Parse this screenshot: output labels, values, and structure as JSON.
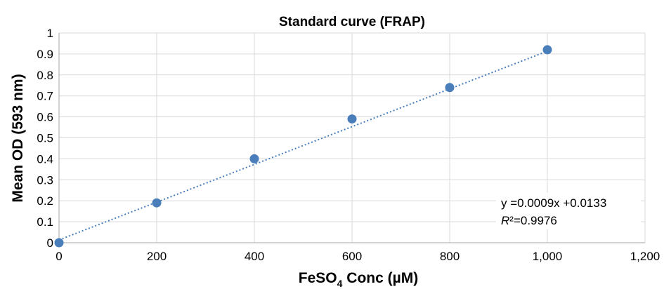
{
  "chart_data": {
    "type": "scatter",
    "title": "Standard curve (FRAP)",
    "xlabel": {
      "main": "FeSO",
      "sub": "4",
      "rest": " Conc (µM)"
    },
    "ylabel": "Mean OD (593 nm)",
    "xlim": [
      0,
      1200
    ],
    "ylim": [
      0,
      1
    ],
    "x_ticks": [
      0,
      200,
      400,
      600,
      800,
      1000,
      1200
    ],
    "x_tick_labels": [
      "0",
      "200",
      "400",
      "600",
      "800",
      "1,000",
      "1,200"
    ],
    "y_ticks": [
      0,
      0.1,
      0.2,
      0.3,
      0.4,
      0.5,
      0.6,
      0.7,
      0.8,
      0.9,
      1
    ],
    "y_tick_labels": [
      "0",
      "0.1",
      "0.2",
      "0.3",
      "0.4",
      "0.5",
      "0.6",
      "0.7",
      "0.8",
      "0.9",
      "1"
    ],
    "grid": true,
    "series": [
      {
        "x": [
          0,
          200,
          400,
          600,
          800,
          1000
        ],
        "y": [
          0.0,
          0.19,
          0.4,
          0.59,
          0.74,
          0.92
        ],
        "color": "#4a7ebb"
      }
    ],
    "trendline": {
      "slope": 0.0009,
      "intercept": 0.0133,
      "x_range": [
        0,
        1000
      ],
      "style": "dotted",
      "color": "#4a7ebb"
    },
    "annotation": {
      "equation": "y =0.0009x +0.0133",
      "r2_label": "R",
      "r2_value": "²=0.9976"
    }
  }
}
